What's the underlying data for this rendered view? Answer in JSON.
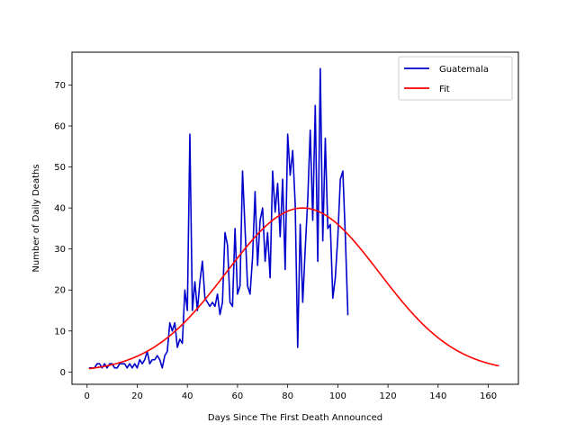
{
  "chart_data": {
    "type": "line",
    "xlabel": "Days Since The First Death Announced",
    "ylabel": "Number of Daily Deaths",
    "xlim": [
      -6,
      172
    ],
    "ylim": [
      -3,
      78
    ],
    "xticks": [
      0,
      20,
      40,
      60,
      80,
      100,
      120,
      140,
      160
    ],
    "yticks": [
      0,
      10,
      20,
      30,
      40,
      50,
      60,
      70
    ],
    "grid": false,
    "legend_position": "top-right",
    "series": [
      {
        "name": "Guatemala",
        "color": "#0000cd",
        "x": [
          1,
          2,
          3,
          4,
          5,
          6,
          7,
          8,
          9,
          10,
          11,
          12,
          13,
          14,
          15,
          16,
          17,
          18,
          19,
          20,
          21,
          22,
          23,
          24,
          25,
          26,
          27,
          28,
          29,
          30,
          31,
          32,
          33,
          34,
          35,
          36,
          37,
          38,
          39,
          40,
          41,
          42,
          43,
          44,
          45,
          46,
          47,
          48,
          49,
          50,
          51,
          52,
          53,
          54,
          55,
          56,
          57,
          58,
          59,
          60,
          61,
          62,
          63,
          64,
          65,
          66,
          67,
          68,
          69,
          70,
          71,
          72,
          73,
          74,
          75,
          76,
          77,
          78,
          79,
          80,
          81,
          82,
          83,
          84,
          85,
          86,
          87,
          88,
          89,
          90,
          91,
          92,
          93,
          94,
          95,
          96,
          97,
          98,
          99,
          100,
          101,
          102,
          103,
          104
        ],
        "y": [
          1,
          1,
          1,
          2,
          2,
          1,
          2,
          1,
          2,
          2,
          1,
          1,
          2,
          2,
          2,
          1,
          2,
          1,
          2,
          1,
          3,
          2,
          3,
          5,
          2,
          3,
          3,
          4,
          3,
          1,
          4,
          5,
          12,
          10,
          12,
          6,
          8,
          7,
          20,
          15,
          58,
          15,
          22,
          15,
          22,
          27,
          18,
          17,
          16,
          17,
          16,
          19,
          14,
          17,
          34,
          31,
          17,
          16,
          35,
          19,
          21,
          49,
          35,
          21,
          19,
          28,
          44,
          26,
          37,
          40,
          27,
          34,
          23,
          49,
          39,
          46,
          33,
          47,
          25,
          58,
          48,
          54,
          41,
          6,
          36,
          17,
          30,
          42,
          59,
          37,
          65,
          27,
          74,
          32,
          57,
          35,
          36,
          18,
          23,
          33,
          47,
          49,
          33,
          14
        ]
      },
      {
        "name": "Fit",
        "color": "#ff0000",
        "peak": 40,
        "center": 86,
        "sigma": 30.5,
        "x_start": 1,
        "x_end": 164
      }
    ]
  }
}
